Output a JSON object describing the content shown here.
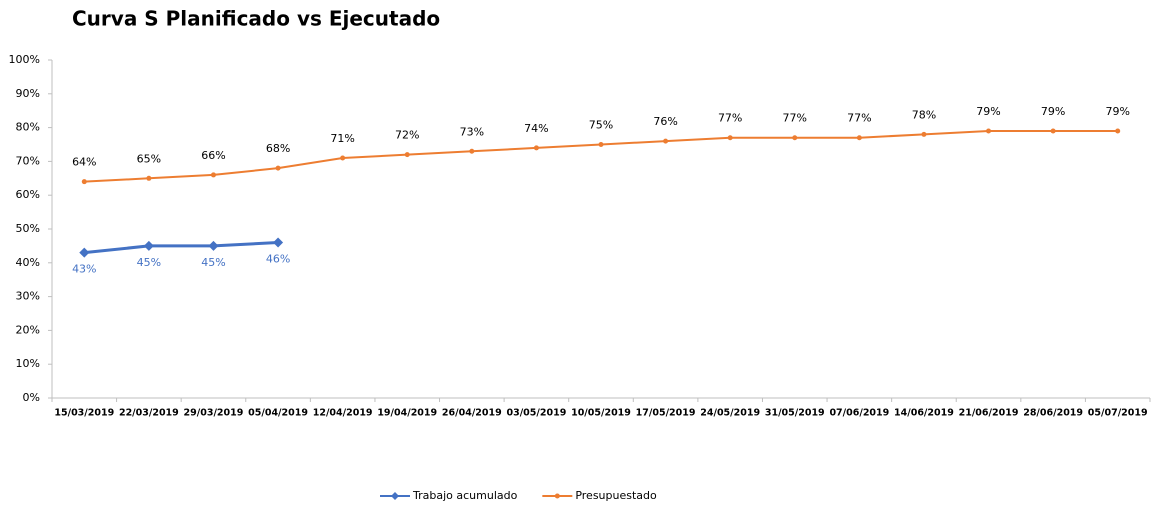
{
  "chart_data": {
    "type": "line",
    "title": "Curva S Planificado vs Ejecutado",
    "categories": [
      "15/03/2019",
      "22/03/2019",
      "29/03/2019",
      "05/04/2019",
      "12/04/2019",
      "19/04/2019",
      "26/04/2019",
      "03/05/2019",
      "10/05/2019",
      "17/05/2019",
      "24/05/2019",
      "31/05/2019",
      "07/06/2019",
      "14/06/2019",
      "21/06/2019",
      "28/06/2019",
      "05/07/2019"
    ],
    "series": [
      {
        "name": "Trabajo acumulado",
        "color": "#4472c4",
        "values": [
          43,
          45,
          45,
          46,
          null,
          null,
          null,
          null,
          null,
          null,
          null,
          null,
          null,
          null,
          null,
          null,
          null
        ],
        "value_labels": [
          "43%",
          "45%",
          "45%",
          "46%",
          null,
          null,
          null,
          null,
          null,
          null,
          null,
          null,
          null,
          null,
          null,
          null,
          null
        ]
      },
      {
        "name": "Presupuestado",
        "color": "#ed7d31",
        "values": [
          64,
          65,
          66,
          68,
          71,
          72,
          73,
          74,
          75,
          76,
          77,
          77,
          77,
          78,
          79,
          79,
          79
        ],
        "value_labels": [
          "64%",
          "65%",
          "66%",
          "68%",
          "71%",
          "72%",
          "73%",
          "74%",
          "75%",
          "76%",
          "77%",
          "77%",
          "77%",
          "78%",
          "79%",
          "79%",
          "79%"
        ]
      }
    ],
    "ylim": [
      0,
      100
    ],
    "yticks": [
      {
        "value": 0,
        "label": "0%"
      },
      {
        "value": 10,
        "label": "10%"
      },
      {
        "value": 20,
        "label": "20%"
      },
      {
        "value": 30,
        "label": "30%"
      },
      {
        "value": 40,
        "label": "40%"
      },
      {
        "value": 50,
        "label": "50%"
      },
      {
        "value": 60,
        "label": "60%"
      },
      {
        "value": 70,
        "label": "70%"
      },
      {
        "value": 80,
        "label": "80%"
      },
      {
        "value": 90,
        "label": "90%"
      },
      {
        "value": 100,
        "label": "100%"
      }
    ],
    "grid": false,
    "legend": "bottom"
  }
}
